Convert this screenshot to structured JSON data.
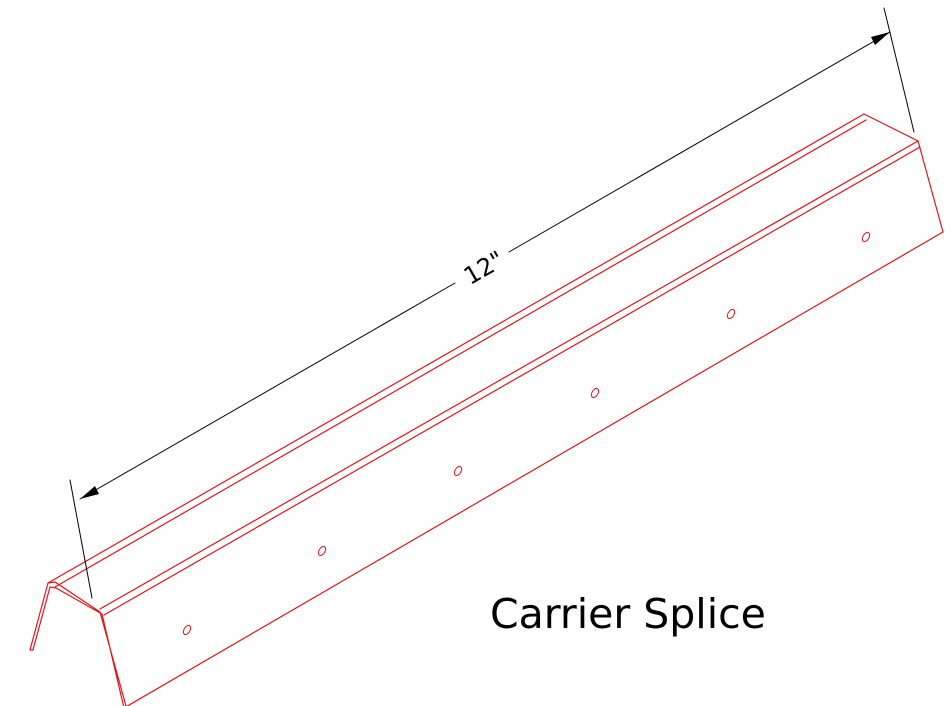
{
  "drawing": {
    "dimension_label": "12\"",
    "caption": "Carrier Splice"
  },
  "colors": {
    "part": "#e0151b",
    "dimension": "#000000",
    "text": "#000000",
    "background": "#ffffff"
  }
}
